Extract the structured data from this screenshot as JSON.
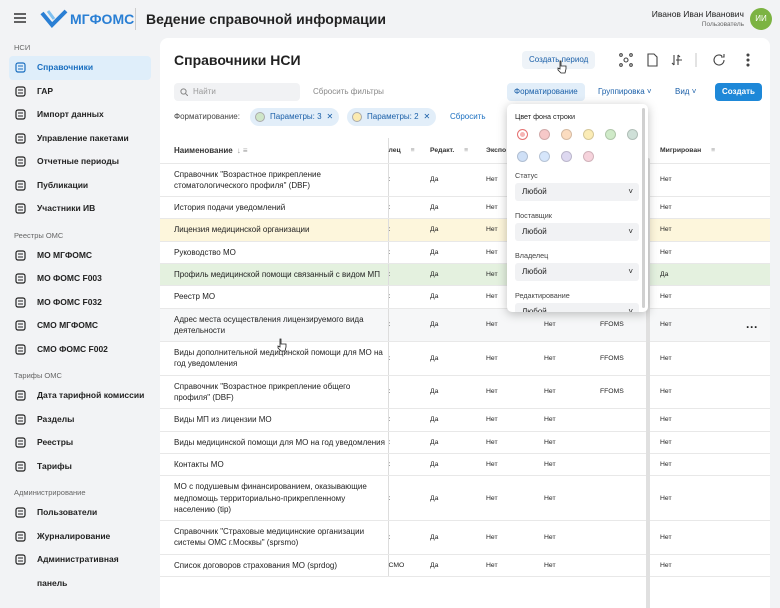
{
  "header": {
    "logo": "МГФОМС",
    "title": "Ведение справочной информации",
    "user": "Иванов Иван Иванович",
    "role": "Пользователь",
    "avatar": "ИИ"
  },
  "sidebar": [
    {
      "title": "НСИ",
      "items": [
        "Справочники",
        "ГАР",
        "Импорт данных",
        "Управление пакетами",
        "Отчетные периоды",
        "Публикации",
        "Участники ИВ"
      ]
    },
    {
      "title": "Реестры ОМС",
      "items": [
        "МО МГФОМС",
        "МО ФОМС F003",
        "МО ФОМС F032",
        "СМО МГФОМС",
        "СМО ФОМС F002"
      ]
    },
    {
      "title": "Тарифы ОМС",
      "items": [
        "Дата тарифной комиссии",
        "Разделы",
        "Реестры",
        "Тарифы"
      ]
    },
    {
      "title": "Администрирование",
      "items": [
        "Пользователи",
        "Журналирование",
        "Административная панель"
      ]
    }
  ],
  "page": {
    "title": "Справочники НСИ",
    "create_period": "Создать период",
    "search": "Найти",
    "reset_filters": "Сбросить фильтры",
    "formatting": "Форматирование",
    "grouping": "Группировка",
    "view": "Вид",
    "create": "Создать",
    "format_label": "Форматирование:",
    "chips": [
      "Параметры: 3",
      "Параметры: 2"
    ],
    "reset": "Сбросить"
  },
  "table": {
    "columns": [
      "Наименование",
      "лец",
      "Редакт.",
      "Экспо",
      "Мигрирован"
    ],
    "rows": [
      {
        "name": "Справочник \"Возрастное прикрепление стоматологического профиля\" (DBF)",
        "owner": ":",
        "edit": "Да",
        "export": "Нет",
        "migr": "Нет"
      },
      {
        "name": "История подачи уведомлений",
        "owner": ":",
        "edit": "Да",
        "export": "Нет",
        "migr": "Нет"
      },
      {
        "name": "Лицензия медицинской организации",
        "owner": ":",
        "edit": "Да",
        "export": "Нет",
        "migr": "Нет"
      },
      {
        "name": "Руководство МО",
        "owner": ":",
        "edit": "Да",
        "export": "Нет",
        "migr": "Нет"
      },
      {
        "name": "Профиль медицинской помощи связанный с видом МП",
        "owner": ":",
        "edit": "Да",
        "export": "Нет",
        "migr": "Да"
      },
      {
        "name": "Реестр МО",
        "owner": ":",
        "edit": "Да",
        "export": "Нет",
        "migr": "Нет"
      },
      {
        "name": "Адрес места осуществления лицензируемого вида деятельности",
        "owner": ":",
        "edit": "Да",
        "export": "Нет",
        "c4": "Нет",
        "c5": "FFOMS",
        "migr": "Нет"
      },
      {
        "name": "Виды дополнительной медицинской помощи для МО на год уведомления",
        "owner": ":",
        "edit": "Да",
        "export": "Нет",
        "c4": "Нет",
        "c5": "FFOMS",
        "migr": "Нет"
      },
      {
        "name": "Справочник \"Возрастное прикрепление общего профиля\" (DBF)",
        "owner": ":",
        "edit": "Да",
        "export": "Нет",
        "c4": "Нет",
        "c5": "FFOMS",
        "migr": "Нет"
      },
      {
        "name": "Виды МП из лицензии МО",
        "owner": ":",
        "edit": "Да",
        "export": "Нет",
        "c4": "Нет",
        "migr": "Нет"
      },
      {
        "name": "Виды медицинской помощи для МО на год уведомления",
        "owner": ":",
        "edit": "Да",
        "export": "Нет",
        "c4": "Нет",
        "migr": "Нет"
      },
      {
        "name": "Контакты МО",
        "owner": ":",
        "edit": "Да",
        "export": "Нет",
        "c4": "Нет",
        "migr": "Нет"
      },
      {
        "name": "МО с подушевым финансированием, оказывающие медпомощь территориально-прикрепленному населению (tip)",
        "owner": ":",
        "edit": "Да",
        "export": "Нет",
        "c4": "Нет",
        "migr": "Нет"
      },
      {
        "name": "Справочник \"Страховые медицинские организации системы ОМС г.Москвы\" (sprsmo)",
        "owner": ":",
        "edit": "Да",
        "export": "Нет",
        "c4": "Нет",
        "migr": "Нет"
      },
      {
        "name": "Список договоров страхования МО (sprdog)",
        "owner": "СМО",
        "edit": "Да",
        "export": "Нет",
        "c4": "Нет",
        "migr": "Нет"
      }
    ]
  },
  "popup": {
    "color_title": "Цвет фона строки",
    "fields": [
      {
        "label": "Статус",
        "value": "Любой"
      },
      {
        "label": "Поставщик",
        "value": "Любой"
      },
      {
        "label": "Владелец",
        "value": "Любой"
      },
      {
        "label": "Редактирование",
        "value": "Любой"
      }
    ]
  }
}
